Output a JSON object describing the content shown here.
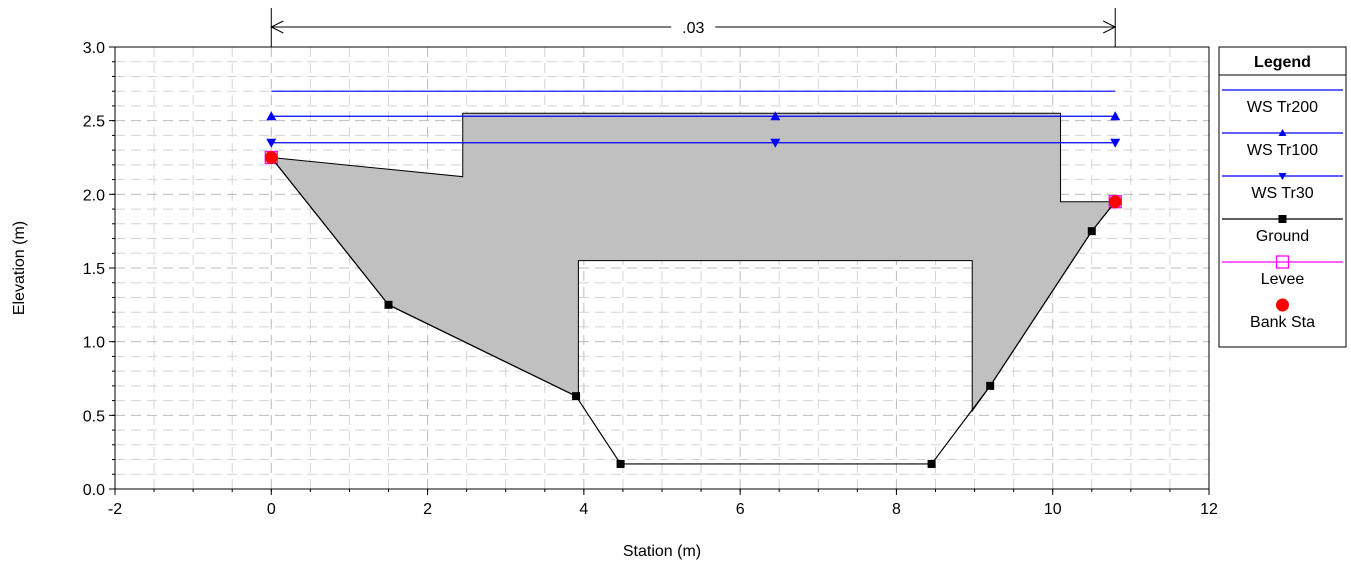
{
  "chart_data": {
    "type": "line",
    "xlabel": "Station (m)",
    "ylabel": "Elevation (m)",
    "xlim": [
      -2,
      12
    ],
    "ylim": [
      0,
      3
    ],
    "x_ticks": [
      "-2",
      "0",
      "2",
      "4",
      "6",
      "8",
      "10",
      "12"
    ],
    "y_ticks": [
      "0.0",
      "0.5",
      "1.0",
      "1.5",
      "2.0",
      "2.5",
      "3.0"
    ],
    "grid": true,
    "mannings_n": {
      "label": ".03",
      "from": 0,
      "to": 10.8
    },
    "fill_color": "#c0c0c0",
    "flow_area": [
      [
        0,
        2.25
      ],
      [
        2.45,
        2.12
      ],
      [
        2.45,
        2.55
      ],
      [
        10.1,
        2.55
      ],
      [
        10.1,
        1.95
      ],
      [
        10.8,
        1.95
      ],
      [
        10.5,
        1.75
      ],
      [
        9.2,
        0.7
      ],
      [
        8.97,
        0.53
      ],
      [
        8.97,
        1.55
      ],
      [
        3.93,
        1.55
      ],
      [
        3.93,
        0.63
      ],
      [
        3.9,
        0.63
      ],
      [
        1.5,
        1.25
      ]
    ],
    "series": [
      {
        "name": "WS Tr200",
        "color": "#0000ff",
        "marker": "none",
        "x": [
          0,
          10.8
        ],
        "y": [
          2.7,
          2.7
        ]
      },
      {
        "name": "WS Tr100",
        "color": "#0000ff",
        "marker": "triangle-up",
        "x": [
          0,
          6.45,
          10.8
        ],
        "y": [
          2.53,
          2.53,
          2.53
        ]
      },
      {
        "name": "WS Tr30",
        "color": "#0000ff",
        "marker": "triangle-down",
        "x": [
          0,
          6.45,
          10.8
        ],
        "y": [
          2.35,
          2.35,
          2.35
        ]
      },
      {
        "name": "Ground",
        "color": "#000000",
        "marker": "square",
        "x": [
          0,
          1.5,
          3.9,
          4.47,
          8.45,
          9.2,
          10.5,
          10.8
        ],
        "y": [
          2.25,
          1.25,
          0.63,
          0.17,
          0.17,
          0.7,
          1.75,
          1.95
        ]
      },
      {
        "name": "Levee",
        "color": "#ff00ff",
        "marker": "open-square",
        "x": [
          0,
          10.8
        ],
        "y": [
          2.25,
          1.95
        ]
      },
      {
        "name": "Bank Sta",
        "color": "#ff0000",
        "marker": "circle",
        "x": [
          0,
          10.8
        ],
        "y": [
          2.25,
          1.95
        ]
      }
    ],
    "legend": {
      "title": "Legend",
      "position": "right",
      "entries": [
        {
          "name": "WS Tr200",
          "color": "#0000ff",
          "marker": "none"
        },
        {
          "name": "WS Tr100",
          "color": "#0000ff",
          "marker": "triangle-up"
        },
        {
          "name": "WS Tr30",
          "color": "#0000ff",
          "marker": "triangle-down"
        },
        {
          "name": "Ground",
          "color": "#000000",
          "marker": "square"
        },
        {
          "name": "Levee",
          "color": "#ff00ff",
          "marker": "open-square"
        },
        {
          "name": "Bank Sta",
          "color": "#ff0000",
          "marker": "circle"
        }
      ]
    }
  }
}
